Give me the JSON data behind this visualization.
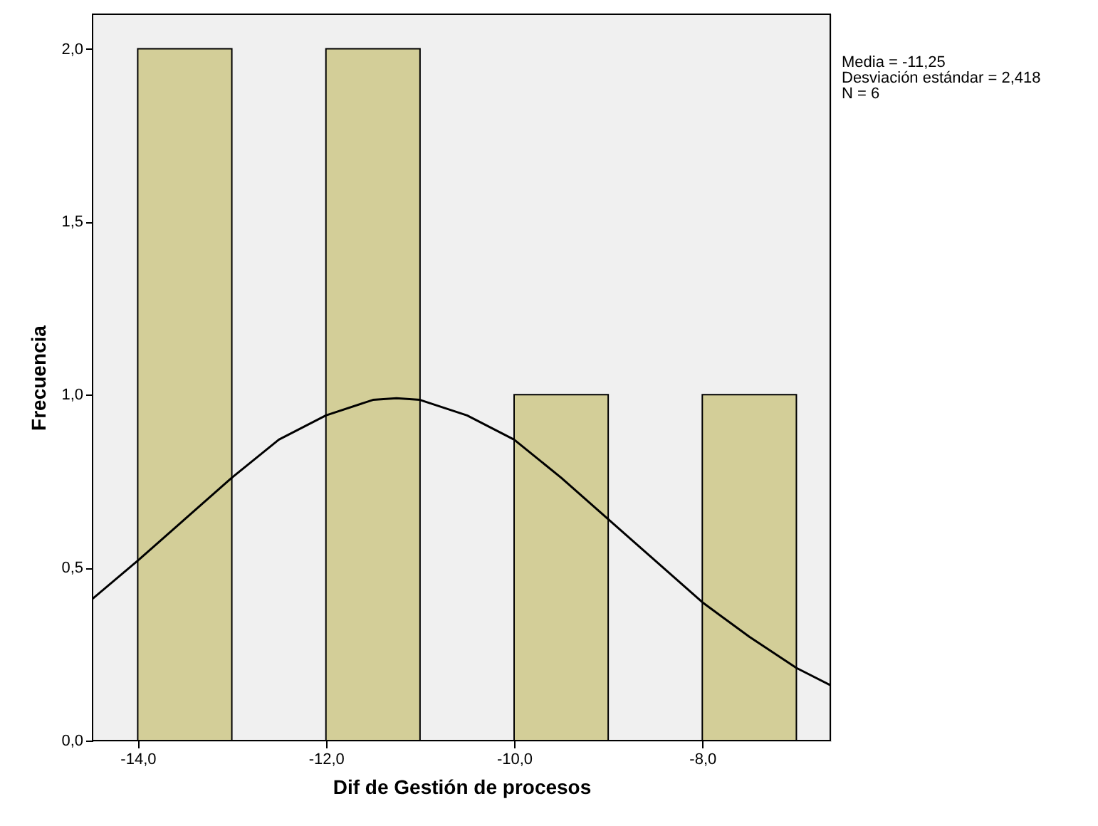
{
  "chart_data": {
    "type": "histogram",
    "xlabel": "Dif de Gestión de procesos",
    "ylabel": "Frecuencia",
    "bins": [
      -14,
      -13,
      -12,
      -11,
      -10,
      -9,
      -8,
      -7
    ],
    "values": [
      2,
      0,
      2,
      0,
      1,
      0,
      1
    ],
    "color": "#d3ce98",
    "series": [
      {
        "type": "line",
        "color": "#000000",
        "x": [
          -14.48,
          -14,
          -13.5,
          -13,
          -12.5,
          -12,
          -11.5,
          -11.25,
          -11,
          -10.5,
          -10,
          -9.5,
          -9,
          -8.5,
          -8,
          -7.5,
          -7,
          -6.64
        ],
        "values": [
          0.41,
          0.52,
          0.64,
          0.76,
          0.87,
          0.94,
          0.985,
          0.99,
          0.985,
          0.94,
          0.87,
          0.76,
          0.64,
          0.52,
          0.4,
          0.3,
          0.21,
          0.16
        ]
      }
    ],
    "xlim": [
      -14.48,
      -6.64
    ],
    "ylim": [
      0,
      2.1
    ],
    "xticks": [
      {
        "value": -14,
        "label": "-14,0"
      },
      {
        "value": -12,
        "label": "-12,0"
      },
      {
        "value": -10,
        "label": "-10,0"
      },
      {
        "value": -8,
        "label": "-8,0"
      }
    ],
    "yticks": [
      {
        "value": 0,
        "label": "0,0"
      },
      {
        "value": 0.5,
        "label": "0,5"
      },
      {
        "value": 1,
        "label": "1,0"
      },
      {
        "value": 1.5,
        "label": "1,5"
      },
      {
        "value": 2,
        "label": "2,0"
      }
    ],
    "annotations": [
      "Media = -11,25",
      "Desviación estándar = 2,418",
      "N = 6"
    ]
  }
}
